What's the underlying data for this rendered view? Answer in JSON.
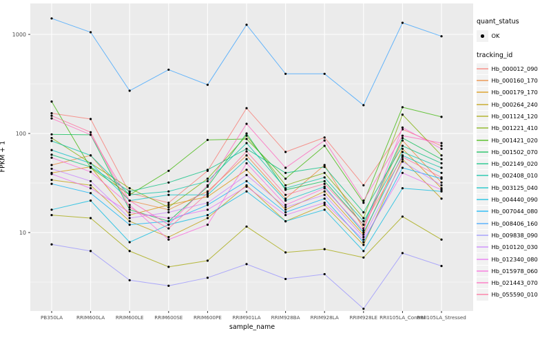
{
  "chart_data": {
    "type": "line",
    "title": "",
    "xlabel": "sample_name",
    "ylabel": "FPKM + 1",
    "yscale": "log10",
    "ylim": [
      1.6,
      1780
    ],
    "yticks": [
      10,
      100,
      1000
    ],
    "grid": "on",
    "legend_position": "right",
    "categories": [
      "PB350LA",
      "RRIM600LA",
      "RRIM600LE",
      "RRIM600SE",
      "RRIM600PE",
      "RRIM901LA",
      "RRIM928BA",
      "RRIM928LA",
      "RRIM928LE",
      "RRII105LA_Control",
      "RRII105LA_Stressed"
    ],
    "quant_status": {
      "title": "quant_status",
      "items": [
        {
          "label": "OK",
          "shape": "point"
        }
      ]
    },
    "tracking_legend_title": "tracking_id",
    "series": [
      {
        "name": "Hb_000012_090",
        "color": "#F8766D",
        "values": [
          160,
          140,
          25,
          20,
          42,
          180,
          65,
          91,
          30,
          110,
          75
        ]
      },
      {
        "name": "Hb_000160_170",
        "color": "#EA8331",
        "values": [
          48,
          60,
          21,
          17,
          26,
          60,
          22,
          48,
          11,
          85,
          32
        ]
      },
      {
        "name": "Hb_000179_170",
        "color": "#D89000",
        "values": [
          40,
          46,
          15,
          19,
          23,
          43,
          17,
          26,
          9.5,
          70,
          28
        ]
      },
      {
        "name": "Hb_000264_240",
        "color": "#C09B00",
        "values": [
          34,
          30,
          13,
          9,
          14,
          30,
          13,
          19,
          7.5,
          55,
          22
        ]
      },
      {
        "name": "Hb_001124_120",
        "color": "#A3A500",
        "values": [
          15,
          14,
          6.5,
          4.5,
          5.2,
          11.5,
          6.3,
          6.8,
          5.6,
          14.5,
          8.5
        ]
      },
      {
        "name": "Hb_001221_410",
        "color": "#7CAE00",
        "values": [
          90,
          50,
          28,
          18,
          35,
          95,
          30,
          40,
          14,
          155,
          60
        ]
      },
      {
        "name": "Hb_001421_020",
        "color": "#39B600",
        "values": [
          210,
          45,
          24,
          42,
          86,
          88,
          35,
          75,
          20,
          184,
          147
        ]
      },
      {
        "name": "Hb_001502_070",
        "color": "#00BB4E",
        "values": [
          98,
          97,
          17,
          13,
          29,
          100,
          27,
          33,
          12,
          90,
          55
        ]
      },
      {
        "name": "Hb_002149_020",
        "color": "#00BF7D",
        "values": [
          61,
          46,
          26,
          32,
          43,
          70,
          40,
          46,
          16,
          75,
          50
        ]
      },
      {
        "name": "Hb_002408_010",
        "color": "#00C1A3",
        "values": [
          84,
          60,
          24,
          26,
          33,
          80,
          28,
          36,
          13,
          65,
          45
        ]
      },
      {
        "name": "Hb_003125_040",
        "color": "#00BFC4",
        "values": [
          68,
          50,
          21,
          24,
          24,
          55,
          21,
          29,
          10,
          60,
          40
        ]
      },
      {
        "name": "Hb_004440_090",
        "color": "#00BAE0",
        "values": [
          17,
          21,
          8,
          12,
          15,
          26,
          13,
          17,
          6.5,
          28,
          26
        ]
      },
      {
        "name": "Hb_007044_080",
        "color": "#00B0F6",
        "values": [
          31,
          25,
          12,
          13,
          19,
          33,
          16,
          22,
          8,
          45,
          35
        ]
      },
      {
        "name": "Hb_008406_160",
        "color": "#35A2FF",
        "values": [
          1450,
          1050,
          270,
          440,
          310,
          1250,
          400,
          400,
          193,
          1310,
          958
        ]
      },
      {
        "name": "Hb_009838_090",
        "color": "#9590FF",
        "values": [
          7.6,
          6.5,
          3.3,
          2.9,
          3.5,
          4.8,
          3.4,
          3.8,
          1.7,
          6.2,
          4.6
        ]
      },
      {
        "name": "Hb_010120_030",
        "color": "#C77CFF",
        "values": [
          44,
          33,
          14,
          16,
          20,
          38,
          18,
          24,
          9,
          52,
          30
        ]
      },
      {
        "name": "Hb_012340_080",
        "color": "#E76BF3",
        "values": [
          39,
          28,
          16,
          14,
          17,
          29,
          15,
          20,
          8.5,
          40,
          27
        ]
      },
      {
        "name": "Hb_015978_060",
        "color": "#FA62DB",
        "values": [
          57,
          41,
          19,
          8.5,
          12,
          50,
          19,
          28,
          10.5,
          115,
          70
        ]
      },
      {
        "name": "Hb_021443_070",
        "color": "#FF62BC",
        "values": [
          142,
          97,
          21,
          12,
          30,
          125,
          45,
          85,
          21,
          95,
          80
        ]
      },
      {
        "name": "Hb_055590_010",
        "color": "#FF6A98",
        "values": [
          151,
          103,
          18,
          11,
          25,
          66,
          24,
          31,
          12,
          58,
          36
        ]
      }
    ]
  },
  "colors": {
    "panel_bg": "#EBEBEB",
    "gridline": "#FFFFFF",
    "legend_key_bg": "#F2F2F2",
    "axis_text": "#4D4D4D",
    "tick_mark": "#333333",
    "point": "#000000"
  }
}
